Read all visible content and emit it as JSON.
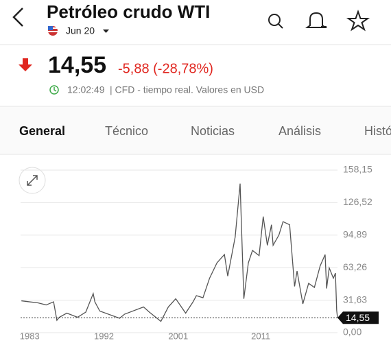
{
  "header": {
    "title": "Petróleo crudo WTI",
    "contract": "Jun 20"
  },
  "quote": {
    "price": "14,55",
    "change": "-5,88 (-28,78%)",
    "time": "12:02:49",
    "info": "| CFD - tiempo real. Valores en USD"
  },
  "tabs": [
    "General",
    "Técnico",
    "Noticias",
    "Análisis",
    "Histórico"
  ],
  "chart_data": {
    "type": "line",
    "color": "#555555",
    "x": [
      1982.0,
      1983.0,
      1984.0,
      1985.0,
      1985.9,
      1986.3,
      1986.6,
      1987.5,
      1988.8,
      1989.8,
      1990.7,
      1990.9,
      1991.5,
      1993.9,
      1994.5,
      1996.8,
      1997.5,
      1998.9,
      1999.8,
      2000.7,
      2001.9,
      2002.8,
      2003.2,
      2004.0,
      2004.8,
      2005.7,
      2006.6,
      2007.0,
      2007.9,
      2008.5,
      2008.95,
      2009.5,
      2010.0,
      2010.8,
      2011.3,
      2011.8,
      2012.3,
      2012.5,
      2013.2,
      2013.7,
      2014.5,
      2015.1,
      2015.4,
      2016.1,
      2016.8,
      2017.5,
      2018.2,
      2018.8,
      2018.98,
      2019.3,
      2019.8,
      2020.05,
      2020.2,
      2020.3
    ],
    "series": [
      {
        "name": "WTI",
        "color": "#555555",
        "values": [
          31,
          30,
          29,
          27,
          30,
          12,
          15,
          19,
          15,
          20,
          38,
          30,
          21,
          14,
          18,
          25,
          20,
          11,
          25,
          33,
          19,
          30,
          36,
          34,
          53,
          68,
          76,
          55,
          93,
          145,
          33,
          68,
          80,
          75,
          113,
          85,
          105,
          85,
          95,
          108,
          105,
          45,
          60,
          28,
          48,
          44,
          65,
          76,
          43,
          63,
          53,
          58,
          22,
          14.55
        ]
      }
    ],
    "xlim": [
      1981.9,
      2020.3
    ],
    "xticks": [
      1983,
      1992,
      2001,
      2011
    ],
    "ylim": [
      0,
      158.15
    ],
    "yticks": [
      {
        "value": 0,
        "label": "0,00"
      },
      {
        "value": 31.63,
        "label": "31,63"
      },
      {
        "value": 63.26,
        "label": "63,26"
      },
      {
        "value": 94.89,
        "label": "94,89"
      },
      {
        "value": 126.52,
        "label": "126,52"
      },
      {
        "value": 158.15,
        "label": "158,15"
      }
    ],
    "last": {
      "value": 14.55,
      "label": "14,55"
    },
    "grid": true
  }
}
